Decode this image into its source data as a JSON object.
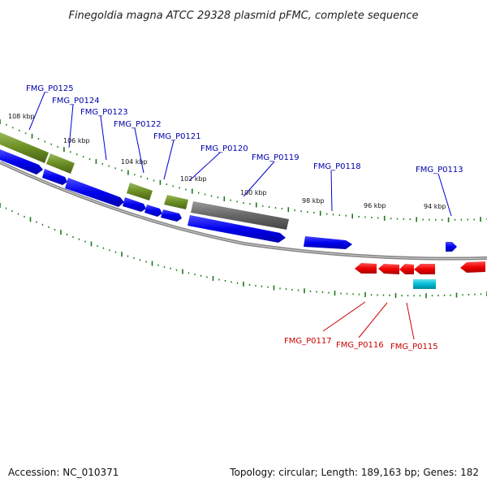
{
  "title": "Finegoldia magna ATCC 29328 plasmid pFMC, complete sequence",
  "footer": {
    "accession": "Accession: NC_010371",
    "summary": "Topology: circular; Length: 189,163 bp; Genes: 182"
  },
  "colors": {
    "cds_forward": "#0000ee",
    "cds_reverse": "#ee0000",
    "olive_feature": "#6b8e23",
    "gray_feature": "#666666",
    "cyan_feature": "#00bcd4",
    "ticks": "#1a7a1a",
    "backbone": "#888888",
    "label_forward": "#0000aa",
    "label_reverse": "#cc0000"
  },
  "scale_ticks": [
    "108 kbp",
    "106 kbp",
    "104 kbp",
    "102 kbp",
    "100 kbp",
    "98 kbp",
    "96 kbp",
    "94 kbp"
  ],
  "forward_labels": [
    "FMG_P0125",
    "FMG_P0124",
    "FMG_P0123",
    "FMG_P0122",
    "FMG_P0121",
    "FMG_P0120",
    "FMG_P0119",
    "FMG_P0118",
    "FMG_P0113"
  ],
  "reverse_labels": [
    "FMG_P0117",
    "FMG_P0116",
    "FMG_P0115"
  ]
}
